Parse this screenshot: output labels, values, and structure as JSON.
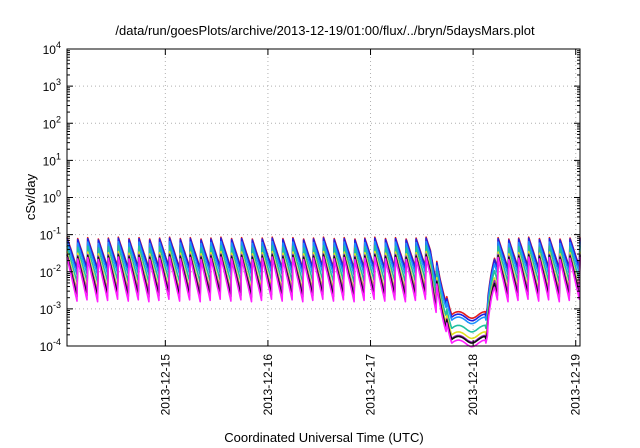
{
  "chart_data": {
    "type": "line",
    "title": "/data/run/goesPlots/archive/2013-12-19/01:00/flux/../bryn/5daysMars.plot",
    "xlabel": "Coordinated Universal Time (UTC)",
    "ylabel": "cSv/day",
    "y_scale": "log",
    "ylim": [
      0.0001,
      10000
    ],
    "y_ticks": [
      {
        "value": 0.0001,
        "base": "10",
        "exp": "-4"
      },
      {
        "value": 0.001,
        "base": "10",
        "exp": "-3"
      },
      {
        "value": 0.01,
        "base": "10",
        "exp": "-2"
      },
      {
        "value": 0.1,
        "base": "10",
        "exp": "-1"
      },
      {
        "value": 1,
        "base": "10",
        "exp": "0"
      },
      {
        "value": 10,
        "base": "10",
        "exp": "1"
      },
      {
        "value": 100,
        "base": "10",
        "exp": "2"
      },
      {
        "value": 1000,
        "base": "10",
        "exp": "3"
      },
      {
        "value": 10000,
        "base": "10",
        "exp": "4"
      }
    ],
    "xlim": [
      "2013-12-14T01:00",
      "2013-12-19T01:00"
    ],
    "x_ticks": [
      "2013-12-15",
      "2013-12-16",
      "2013-12-17",
      "2013-12-18",
      "2013-12-19"
    ],
    "grid": true,
    "legend": "none",
    "period_hours": 2.4,
    "series": [
      {
        "color": "#e41a1c",
        "peak": 0.085,
        "trough": 0.012
      },
      {
        "color": "#2020e0",
        "peak": 0.08,
        "trough": 0.011
      },
      {
        "color": "#1e90ff",
        "peak": 0.065,
        "trough": 0.008
      },
      {
        "color": "#20c0a0",
        "peak": 0.05,
        "trough": 0.005
      },
      {
        "color": "#e0e020",
        "peak": 0.035,
        "trough": 0.003
      },
      {
        "color": "#9020c0",
        "peak": 0.03,
        "trough": 0.0025
      },
      {
        "color": "#111111",
        "peak": 0.028,
        "trough": 0.002
      },
      {
        "color": "#ff20ff",
        "peak": 0.025,
        "trough": 0.0015
      }
    ],
    "event": {
      "start": "2013-12-17T14:00",
      "end": "2013-12-18T03:00",
      "min_start": "2013-12-17T19:00",
      "recovery_end": "2013-12-18T05:00",
      "minimum": {
        "#e41a1c": 0.0007,
        "#2020e0": 0.0006,
        "#1e90ff": 0.0005,
        "#20c0a0": 0.0003,
        "#e0e020": 0.0002,
        "#9020c0": 0.00016,
        "#111111": 0.00015,
        "#ff20ff": 0.00012
      }
    }
  }
}
